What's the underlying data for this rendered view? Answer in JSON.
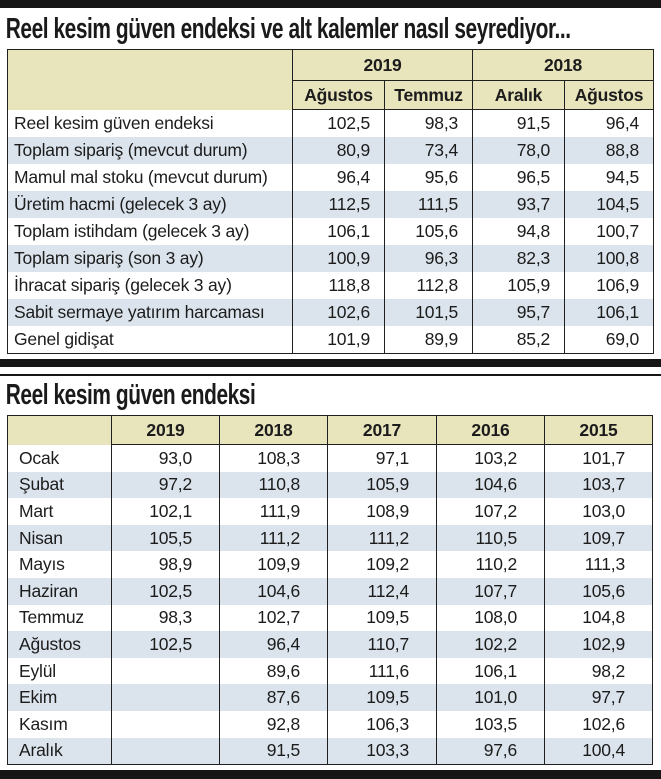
{
  "colors": {
    "header_bg": "#e8e4bc",
    "stripe_bg": "#dbe4ec",
    "border": "#202020",
    "rule_bar": "#161616",
    "text": "#1c1c1c"
  },
  "table1": {
    "title": "Reel kesim güven endeksi ve alt kalemler nasıl seyrediyor...",
    "year_groups": [
      {
        "label": "2019"
      },
      {
        "label": "2018"
      }
    ],
    "columns": [
      "Ağustos",
      "Temmuz",
      "Aralık",
      "Ağustos"
    ],
    "rows": [
      {
        "label": "Reel kesim güven endeksi",
        "values": [
          "102,5",
          "98,3",
          "91,5",
          "96,4"
        ]
      },
      {
        "label": "Toplam sipariş (mevcut durum)",
        "values": [
          "80,9",
          "73,4",
          "78,0",
          "88,8"
        ]
      },
      {
        "label": "Mamul mal stoku (mevcut durum)",
        "values": [
          "96,4",
          "95,6",
          "96,5",
          "94,5"
        ]
      },
      {
        "label": "Üretim hacmi (gelecek 3 ay)",
        "values": [
          "112,5",
          "111,5",
          "93,7",
          "104,5"
        ]
      },
      {
        "label": "Toplam istihdam (gelecek 3 ay)",
        "values": [
          "106,1",
          "105,6",
          "94,8",
          "100,7"
        ]
      },
      {
        "label": "Toplam sipariş (son 3 ay)",
        "values": [
          "100,9",
          "96,3",
          "82,3",
          "100,8"
        ]
      },
      {
        "label": "İhracat sipariş (gelecek 3 ay)",
        "values": [
          "118,8",
          "112,8",
          "105,9",
          "106,9"
        ]
      },
      {
        "label": "Sabit sermaye yatırım harcaması",
        "values": [
          "102,6",
          "101,5",
          "95,7",
          "106,1"
        ]
      },
      {
        "label": "Genel gidişat",
        "values": [
          "101,9",
          "89,9",
          "85,2",
          "69,0"
        ]
      }
    ]
  },
  "table2": {
    "title": "Reel kesim güven endeksi",
    "columns": [
      "2019",
      "2018",
      "2017",
      "2016",
      "2015"
    ],
    "rows": [
      {
        "label": "Ocak",
        "values": [
          "93,0",
          "108,3",
          "97,1",
          "103,2",
          "101,7"
        ]
      },
      {
        "label": "Şubat",
        "values": [
          "97,2",
          "110,8",
          "105,9",
          "104,6",
          "103,7"
        ]
      },
      {
        "label": "Mart",
        "values": [
          "102,1",
          "111,9",
          "108,9",
          "107,2",
          "103,0"
        ]
      },
      {
        "label": "Nisan",
        "values": [
          "105,5",
          "111,2",
          "111,2",
          "110,5",
          "109,7"
        ]
      },
      {
        "label": "Mayıs",
        "values": [
          "98,9",
          "109,9",
          "109,2",
          "110,2",
          "111,3"
        ]
      },
      {
        "label": "Haziran",
        "values": [
          "102,5",
          "104,6",
          "112,4",
          "107,7",
          "105,6"
        ]
      },
      {
        "label": "Temmuz",
        "values": [
          "98,3",
          "102,7",
          "109,5",
          "108,0",
          "104,8"
        ]
      },
      {
        "label": "Ağustos",
        "values": [
          "102,5",
          "96,4",
          "110,7",
          "102,2",
          "102,9"
        ]
      },
      {
        "label": "Eylül",
        "values": [
          "",
          "89,6",
          "111,6",
          "106,1",
          "98,2"
        ]
      },
      {
        "label": "Ekim",
        "values": [
          "",
          "87,6",
          "109,5",
          "101,0",
          "97,7"
        ]
      },
      {
        "label": "Kasım",
        "values": [
          "",
          "92,8",
          "106,3",
          "103,5",
          "102,6"
        ]
      },
      {
        "label": "Aralık",
        "values": [
          "",
          "91,5",
          "103,3",
          "97,6",
          "100,4"
        ]
      }
    ]
  }
}
